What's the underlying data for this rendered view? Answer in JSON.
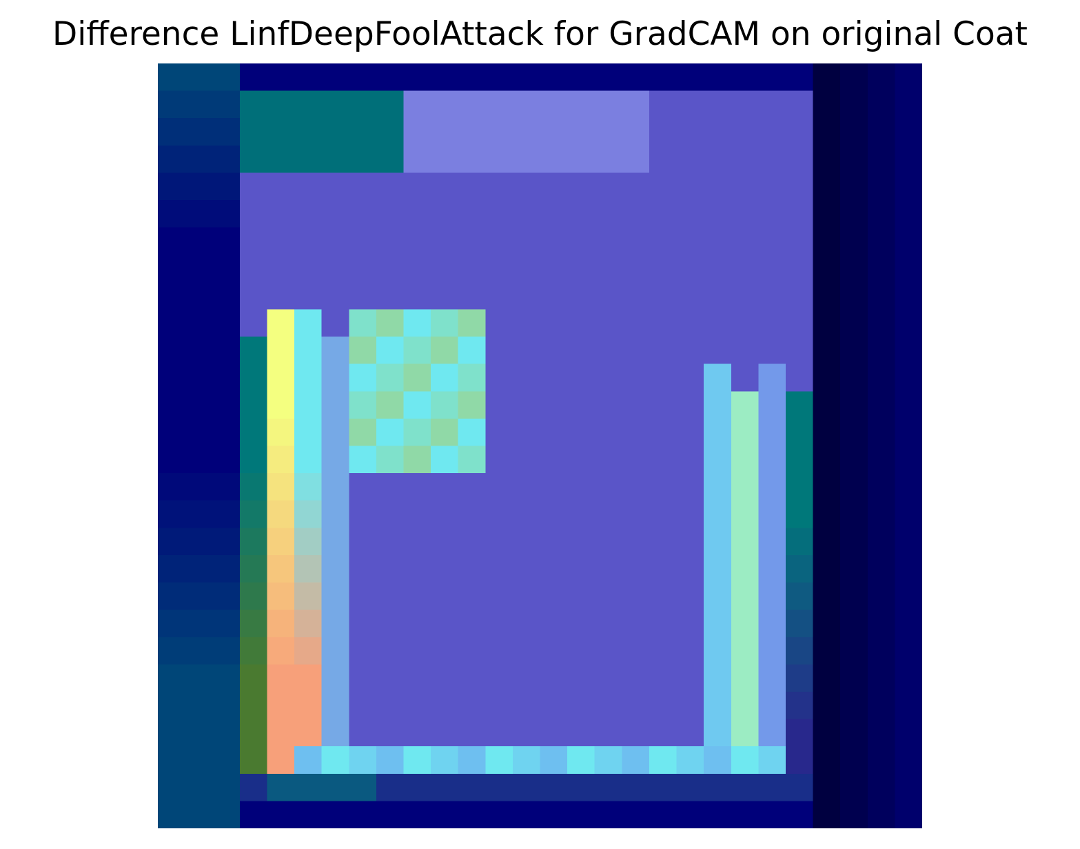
{
  "figure": {
    "title": "Difference LinfDeepFoolAttack for GradCAM on original Coat"
  },
  "image": {
    "description_hidden": false,
    "grid_rows": 28,
    "grid_cols": 28,
    "colors": {
      "background": "#ffffff",
      "deep_navy": "#000040",
      "navy": "#00007a",
      "blue": "#1a2a8a",
      "purple": "#5a55c8",
      "lavender": "#7b7fe0",
      "teal": "#00787a",
      "cyan": "#6fe8f0",
      "green": "#4a7a30",
      "yellow": "#f4ff80",
      "orange": "#f7a07a"
    }
  }
}
